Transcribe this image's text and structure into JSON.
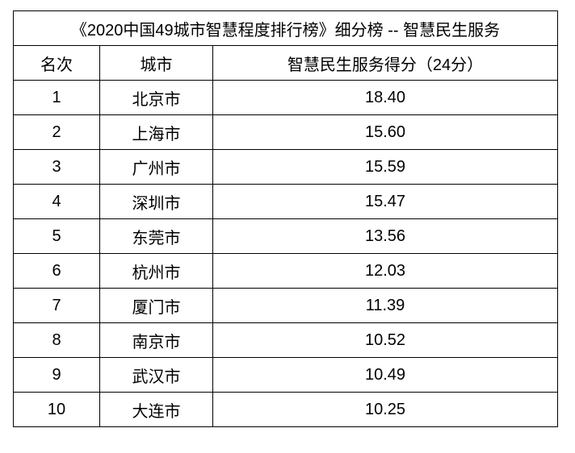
{
  "title": "《2020中国49城市智慧程度排行榜》细分榜 -- 智慧民生服务",
  "headers": [
    "名次",
    "城市",
    "智慧民生服务得分（24分）"
  ],
  "rows": [
    [
      "1",
      "北京市",
      "18.40"
    ],
    [
      "2",
      "上海市",
      "15.60"
    ],
    [
      "3",
      "广州市",
      "15.59"
    ],
    [
      "4",
      "深圳市",
      "15.47"
    ],
    [
      "5",
      "东莞市",
      "13.56"
    ],
    [
      "6",
      "杭州市",
      "12.03"
    ],
    [
      "7",
      "厦门市",
      "11.39"
    ],
    [
      "8",
      "南京市",
      "10.52"
    ],
    [
      "9",
      "武汉市",
      "10.49"
    ],
    [
      "10",
      "大连市",
      "10.25"
    ]
  ]
}
